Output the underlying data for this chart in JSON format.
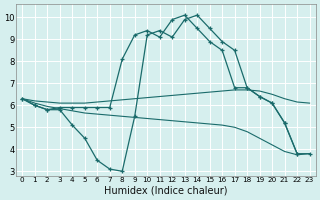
{
  "xlabel": "Humidex (Indice chaleur)",
  "xlim": [
    -0.5,
    23.5
  ],
  "ylim": [
    2.8,
    10.6
  ],
  "yticks": [
    3,
    4,
    5,
    6,
    7,
    8,
    9,
    10
  ],
  "xticks": [
    0,
    1,
    2,
    3,
    4,
    5,
    6,
    7,
    8,
    9,
    10,
    11,
    12,
    13,
    14,
    15,
    16,
    17,
    18,
    19,
    20,
    21,
    22,
    23
  ],
  "bg_color": "#d6efee",
  "line_color": "#1a6b6b",
  "grid_color": "#ffffff",
  "line1": {
    "x": [
      0,
      1,
      2,
      3,
      4,
      5,
      6,
      7,
      8,
      9,
      10,
      11,
      12,
      13,
      14,
      15,
      16,
      17,
      18,
      19,
      20,
      21,
      22
    ],
    "y": [
      6.3,
      6.0,
      5.8,
      5.9,
      5.9,
      5.9,
      5.9,
      5.9,
      8.1,
      9.2,
      9.4,
      9.1,
      9.9,
      10.1,
      9.5,
      8.9,
      8.5,
      6.8,
      6.8,
      6.4,
      6.1,
      5.2,
      3.8
    ]
  },
  "line2": {
    "x": [
      0,
      1,
      2,
      3,
      4,
      5,
      6,
      7,
      8,
      9,
      10,
      11,
      12,
      13,
      14,
      15,
      16,
      17,
      18,
      19,
      20,
      21,
      22,
      23
    ],
    "y": [
      6.3,
      6.0,
      5.8,
      5.8,
      5.1,
      4.5,
      3.5,
      3.1,
      3.0,
      5.5,
      9.2,
      9.4,
      9.1,
      9.9,
      10.1,
      9.5,
      8.9,
      8.5,
      6.8,
      6.4,
      6.1,
      5.2,
      3.8,
      3.8
    ]
  },
  "line3": {
    "x": [
      0,
      1,
      2,
      3,
      4,
      5,
      6,
      7,
      8,
      9,
      10,
      11,
      12,
      13,
      14,
      15,
      16,
      17,
      18,
      19,
      20,
      21,
      22,
      23
    ],
    "y": [
      6.3,
      6.2,
      6.15,
      6.1,
      6.1,
      6.1,
      6.15,
      6.2,
      6.25,
      6.3,
      6.35,
      6.4,
      6.45,
      6.5,
      6.55,
      6.6,
      6.65,
      6.7,
      6.7,
      6.65,
      6.5,
      6.3,
      6.15,
      6.1
    ]
  },
  "line4": {
    "x": [
      0,
      1,
      2,
      3,
      4,
      5,
      6,
      7,
      8,
      9,
      10,
      11,
      12,
      13,
      14,
      15,
      16,
      17,
      18,
      19,
      20,
      21,
      22,
      23
    ],
    "y": [
      6.3,
      6.1,
      5.95,
      5.85,
      5.75,
      5.65,
      5.6,
      5.55,
      5.5,
      5.45,
      5.4,
      5.35,
      5.3,
      5.25,
      5.2,
      5.15,
      5.1,
      5.0,
      4.8,
      4.5,
      4.2,
      3.9,
      3.75,
      3.8
    ]
  }
}
